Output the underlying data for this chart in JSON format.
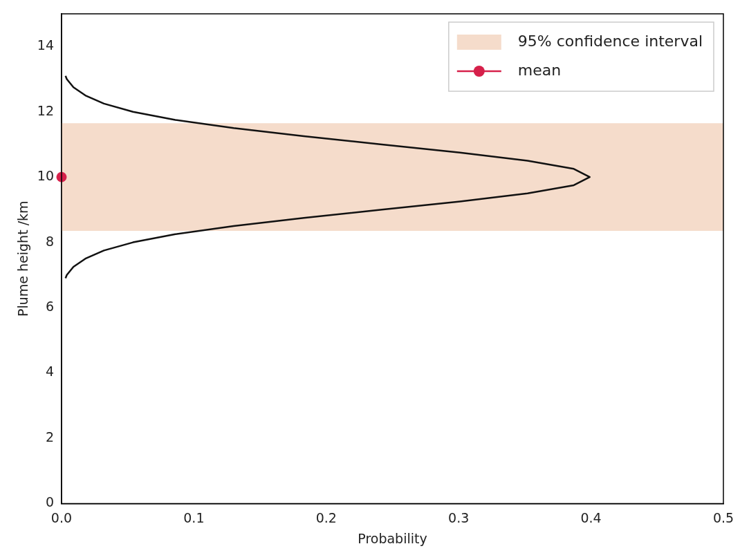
{
  "chart_data": {
    "type": "line",
    "xlabel": "Probability",
    "ylabel": "Plume height /km",
    "xlim": [
      0,
      0.5
    ],
    "xticks": [
      {
        "value": 0,
        "label": "0.0"
      },
      0.1,
      0.2,
      0.3,
      0.4,
      0.5
    ],
    "ylim": [
      0,
      15
    ],
    "yticks": [
      0,
      2,
      4,
      6,
      8,
      10,
      12,
      14
    ],
    "grid": false,
    "legend": "top right",
    "bands": [
      {
        "axis": "y",
        "from": 8.35,
        "to": 11.65,
        "label": "95% confidence interval",
        "color": "#f5dccb"
      }
    ],
    "series": [
      {
        "color": "#111111",
        "marker": "none",
        "x": [
          0.003,
          0.004,
          0.009,
          0.018,
          0.032,
          0.054,
          0.086,
          0.13,
          0.183,
          0.242,
          0.301,
          0.352,
          0.387,
          0.399,
          0.387,
          0.352,
          0.301,
          0.242,
          0.183,
          0.13,
          0.086,
          0.054,
          0.032,
          0.018,
          0.009,
          0.004,
          0.003
        ],
        "values": [
          6.9,
          7.0,
          7.25,
          7.5,
          7.75,
          8.0,
          8.25,
          8.5,
          8.75,
          9.0,
          9.25,
          9.5,
          9.75,
          10.0,
          10.25,
          10.5,
          10.75,
          11.0,
          11.25,
          11.5,
          11.75,
          12.0,
          12.25,
          12.5,
          12.75,
          13.0,
          13.1
        ]
      },
      {
        "type": "scatter",
        "name": "mean",
        "color": "#d6204a",
        "marker": "circle",
        "x": [
          0
        ],
        "values": [
          10
        ]
      }
    ]
  }
}
